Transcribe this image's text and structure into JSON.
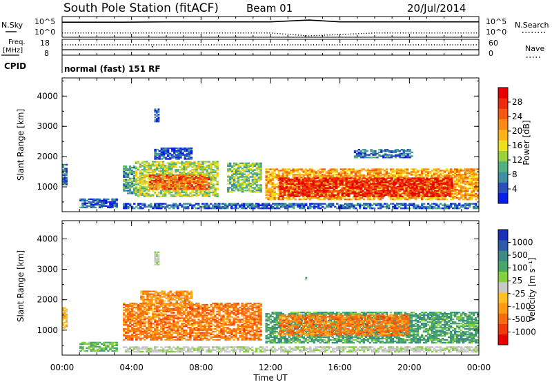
{
  "header": {
    "station": "South Pole Station (fitACF)",
    "beam": "Beam 01",
    "date": "20/Jul/2014"
  },
  "top_panels": {
    "nsky": {
      "label": "N.Sky",
      "ticks": [
        "10^5",
        "10^0"
      ]
    },
    "nsearch": {
      "label": "N.Search",
      "ticks": [
        "10^5",
        "10^0"
      ]
    },
    "freq": {
      "label_line1": "Freq.",
      "label_line2": "[MHz]",
      "ticks": [
        "18",
        "8"
      ]
    },
    "nave": {
      "label": "Nave",
      "ticks": [
        "60",
        "0"
      ]
    },
    "cpid": {
      "label": "CPID",
      "text": "normal (fast) 151 RF"
    }
  },
  "colors": {
    "power_scale": [
      "#0a1ee6",
      "#2a4fb8",
      "#3f8fa0",
      "#52b080",
      "#9ad23c",
      "#f0e01c",
      "#fbb418",
      "#f98c14",
      "#f35a10",
      "#ee2a0c",
      "#e80000"
    ],
    "velocity_scale": [
      "#1a2fb8",
      "#2b5aa8",
      "#3c8a84",
      "#49a66a",
      "#86d040",
      "#c8c8c8",
      "#ffc020",
      "#ff9a14",
      "#f86a10",
      "#f03a0c",
      "#e80000"
    ]
  },
  "chart_data": [
    {
      "type": "line",
      "title": "N.Sky / N.Search",
      "x_ticks": [
        "00:00",
        "04:00",
        "08:00",
        "12:00",
        "16:00",
        "20:00",
        "00:00"
      ],
      "series": [
        {
          "name": "N.Sky",
          "style": "solid",
          "x_hours": [
            0,
            3.5,
            6,
            9,
            12,
            14.2,
            16,
            20,
            24
          ],
          "log10_values": [
            3.8,
            3.8,
            3.9,
            3.9,
            3.9,
            4.4,
            3.9,
            3.9,
            3.9
          ]
        },
        {
          "name": "N.Search",
          "style": "dotted",
          "x_hours": [
            0,
            6,
            12,
            14.2,
            18,
            24
          ],
          "log10_values": [
            0.8,
            0.8,
            0.8,
            0.0,
            0.8,
            0.8
          ]
        }
      ],
      "ylim_log10": [
        0,
        5
      ]
    },
    {
      "type": "line",
      "title": "Freq. / Nave",
      "series": [
        {
          "name": "Freq.",
          "style": "solid",
          "x_hours": [
            0,
            24
          ],
          "values_mhz": [
            11.4,
            11.4
          ]
        },
        {
          "name": "Nave",
          "style": "dotted",
          "x_hours": [
            0,
            5.2,
            5.2,
            5.25,
            24
          ],
          "values": [
            42,
            42,
            28,
            42,
            42
          ]
        }
      ],
      "ylim_freq": [
        8,
        18
      ],
      "ylim_nave": [
        0,
        60
      ]
    },
    {
      "type": "heatmap",
      "title": "Power",
      "xlabel": "",
      "ylabel": "Slant Range [km]",
      "colorbar_label": "Power [dB]",
      "colorbar_ticks": [
        "4",
        "8",
        "12",
        "16",
        "20",
        "24",
        "28"
      ],
      "x_ticks": [
        "00:00",
        "04:00",
        "08:00",
        "12:00",
        "16:00",
        "20:00",
        "00:00"
      ],
      "y_ticks": [
        "1000",
        "2000",
        "3000",
        "4000"
      ],
      "xlim_hours": [
        0,
        24
      ],
      "ylim_km": [
        180,
        4600
      ],
      "regions": [
        {
          "t0": 0.0,
          "t1": 0.3,
          "r0": 1050,
          "r1": 1750,
          "v": 6
        },
        {
          "t0": 3.5,
          "t1": 4.2,
          "r0": 750,
          "r1": 1700,
          "v": 9
        },
        {
          "t0": 4.2,
          "t1": 9.0,
          "r0": 650,
          "r1": 1850,
          "v": 14
        },
        {
          "t0": 5.0,
          "t1": 8.5,
          "r0": 900,
          "r1": 1400,
          "v": 24
        },
        {
          "t0": 5.3,
          "t1": 7.5,
          "r0": 1900,
          "r1": 2300,
          "v": 5
        },
        {
          "t0": 9.5,
          "t1": 11.5,
          "r0": 800,
          "r1": 1800,
          "v": 12
        },
        {
          "t0": 11.7,
          "t1": 24.0,
          "r0": 550,
          "r1": 1600,
          "v": 20
        },
        {
          "t0": 12.5,
          "t1": 22.5,
          "r0": 650,
          "r1": 1300,
          "v": 28
        },
        {
          "t0": 1.0,
          "t1": 3.2,
          "r0": 280,
          "r1": 600,
          "v": 5
        },
        {
          "t0": 3.5,
          "t1": 24.0,
          "r0": 250,
          "r1": 450,
          "v": 6
        },
        {
          "t0": 5.3,
          "t1": 5.6,
          "r0": 3150,
          "r1": 3600,
          "v": 5
        },
        {
          "t0": 16.8,
          "t1": 20.2,
          "r0": 1950,
          "r1": 2250,
          "v": 6
        }
      ]
    },
    {
      "type": "heatmap",
      "title": "Velocity",
      "ylabel": "Slant Range [km]",
      "xlabel": "Time UT",
      "colorbar_label": "Velocity [m s⁻¹]",
      "colorbar_ticks": [
        "-1000",
        "-500",
        "-100",
        "-25",
        "25",
        "100",
        "500",
        "1000"
      ],
      "x_ticks": [
        "00:00",
        "04:00",
        "08:00",
        "12:00",
        "16:00",
        "20:00",
        "00:00"
      ],
      "y_ticks": [
        "1000",
        "2000",
        "3000",
        "4000"
      ],
      "xlim_hours": [
        0,
        24
      ],
      "ylim_km": [
        180,
        4600
      ],
      "regions": [
        {
          "t0": 0.0,
          "t1": 0.3,
          "r0": 1050,
          "r1": 1750,
          "v": -100
        },
        {
          "t0": 3.5,
          "t1": 11.5,
          "r0": 650,
          "r1": 1900,
          "v": -300
        },
        {
          "t0": 4.5,
          "t1": 7.5,
          "r0": 1800,
          "r1": 2300,
          "v": -200
        },
        {
          "t0": 11.7,
          "t1": 24.0,
          "r0": 550,
          "r1": 1600,
          "v": 200
        },
        {
          "t0": 12.5,
          "t1": 20.0,
          "r0": 800,
          "r1": 1500,
          "v": -300
        },
        {
          "t0": 1.0,
          "t1": 3.2,
          "r0": 280,
          "r1": 600,
          "v": 100
        },
        {
          "t0": 3.5,
          "t1": 24.0,
          "r0": 250,
          "r1": 450,
          "v": 20
        },
        {
          "t0": 5.3,
          "t1": 5.6,
          "r0": 3150,
          "r1": 3600,
          "v": 20
        },
        {
          "t0": 14.0,
          "t1": 14.1,
          "r0": 2650,
          "r1": 2800,
          "v": 200
        }
      ]
    }
  ]
}
